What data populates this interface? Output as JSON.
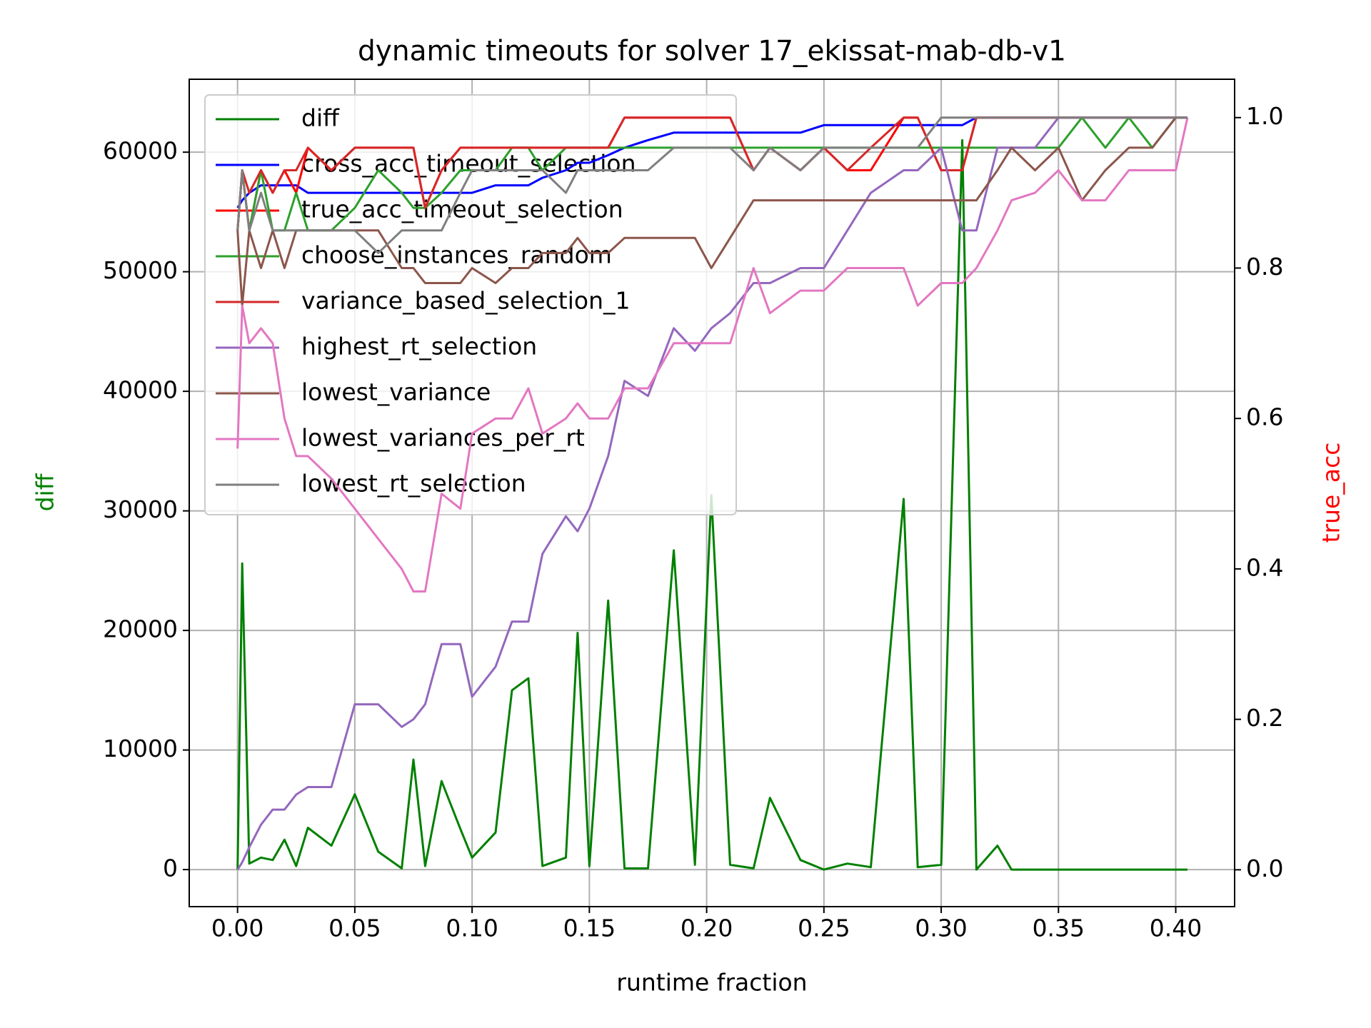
{
  "chart_data": {
    "type": "line",
    "title": "dynamic timeouts for solver 17_ekissat-mab-db-v1",
    "x_label": "runtime fraction",
    "y_label": "diff",
    "y2_label": "true_acc",
    "y_label_color": "#008000",
    "y2_label_color": "#ff0000",
    "x": [
      0,
      0.002,
      0.005,
      0.01,
      0.015,
      0.02,
      0.025,
      0.03,
      0.04,
      0.05,
      0.06,
      0.07,
      0.075,
      0.08,
      0.087,
      0.095,
      0.1,
      0.11,
      0.117,
      0.124,
      0.13,
      0.14,
      0.145,
      0.15,
      0.158,
      0.165,
      0.175,
      0.186,
      0.195,
      0.202,
      0.21,
      0.22,
      0.227,
      0.24,
      0.25,
      0.26,
      0.27,
      0.284,
      0.29,
      0.3,
      0.309,
      0.315,
      0.324,
      0.33,
      0.34,
      0.35,
      0.36,
      0.37,
      0.38,
      0.39,
      0.4,
      0.405
    ],
    "series": [
      {
        "name": "diff",
        "color": "#008000",
        "values": [
          0,
          25600,
          500,
          1000,
          800,
          2500,
          300,
          3500,
          2000,
          6300,
          1500,
          100,
          9200,
          300,
          7400,
          3400,
          1000,
          3100,
          15000,
          16000,
          300,
          1000,
          19800,
          300,
          22500,
          100,
          100,
          26700,
          400,
          31300,
          400,
          100,
          6000,
          800,
          0,
          500,
          200,
          31000,
          200,
          400,
          61000,
          0,
          2000,
          0,
          0,
          0,
          0,
          0,
          0,
          0,
          0,
          0
        ]
      },
      {
        "name": "cross_acc_timeout_selection",
        "color": "#0000ff",
        "axis": "y2",
        "values": [
          0.88,
          0.89,
          0.9,
          0.91,
          0.91,
          0.91,
          0.91,
          0.9,
          0.9,
          0.9,
          0.9,
          0.9,
          0.9,
          0.9,
          0.9,
          0.9,
          0.9,
          0.91,
          0.91,
          0.91,
          0.92,
          0.93,
          0.94,
          0.94,
          0.95,
          0.96,
          0.97,
          0.98,
          0.98,
          0.98,
          0.98,
          0.98,
          0.98,
          0.98,
          0.99,
          0.99,
          0.99,
          0.99,
          0.99,
          0.99,
          0.99,
          1.0,
          1.0,
          1.0,
          1.0,
          1.0,
          1.0,
          1.0,
          1.0,
          1.0,
          1.0,
          1.0
        ]
      },
      {
        "name": "true_acc_timeout_selection",
        "color": "#ff0000",
        "axis": "y2",
        "values": [
          0.85,
          0.93,
          0.85,
          0.93,
          0.9,
          0.93,
          0.9,
          0.96,
          0.93,
          0.96,
          0.96,
          0.96,
          0.96,
          0.88,
          0.93,
          0.96,
          0.96,
          0.96,
          0.96,
          0.96,
          0.96,
          0.96,
          0.96,
          0.96,
          0.96,
          1.0,
          1.0,
          1.0,
          1.0,
          1.0,
          1.0,
          0.93,
          0.96,
          0.93,
          0.96,
          0.93,
          0.93,
          1.0,
          1.0,
          0.93,
          0.93,
          1.0,
          1.0,
          1.0,
          1.0,
          1.0,
          1.0,
          1.0,
          1.0,
          1.0,
          1.0,
          1.0
        ]
      },
      {
        "name": "choose_instances_random",
        "color": "#2ca02c",
        "axis": "y2",
        "values": [
          0.85,
          0.93,
          0.85,
          0.93,
          0.85,
          0.85,
          0.9,
          0.85,
          0.85,
          0.88,
          0.93,
          0.9,
          0.88,
          0.88,
          0.9,
          0.93,
          0.93,
          0.93,
          0.96,
          0.96,
          0.93,
          0.96,
          0.96,
          0.96,
          0.96,
          0.96,
          0.96,
          0.96,
          0.96,
          0.96,
          0.96,
          0.96,
          0.96,
          0.96,
          0.96,
          0.96,
          0.96,
          0.96,
          0.96,
          0.96,
          0.96,
          0.96,
          0.96,
          0.96,
          0.96,
          0.96,
          1.0,
          0.96,
          1.0,
          0.96,
          1.0,
          1.0
        ]
      },
      {
        "name": "variance_based_selection_1",
        "color": "#d62728",
        "axis": "y2",
        "values": [
          0.85,
          0.93,
          0.9,
          0.93,
          0.9,
          0.93,
          0.93,
          0.96,
          0.93,
          0.96,
          0.96,
          0.96,
          0.96,
          0.88,
          0.93,
          0.96,
          0.96,
          0.96,
          0.96,
          0.96,
          0.96,
          0.96,
          0.96,
          0.96,
          0.96,
          1.0,
          1.0,
          1.0,
          1.0,
          1.0,
          1.0,
          0.93,
          0.96,
          0.93,
          0.96,
          0.93,
          0.96,
          1.0,
          1.0,
          0.93,
          0.93,
          1.0,
          1.0,
          1.0,
          1.0,
          1.0,
          1.0,
          1.0,
          1.0,
          1.0,
          1.0,
          1.0
        ]
      },
      {
        "name": "highest_rt_selection",
        "color": "#9467bd",
        "axis": "y2",
        "values": [
          0,
          0.01,
          0.03,
          0.06,
          0.08,
          0.08,
          0.1,
          0.11,
          0.11,
          0.22,
          0.22,
          0.19,
          0.2,
          0.22,
          0.3,
          0.3,
          0.23,
          0.27,
          0.33,
          0.33,
          0.42,
          0.47,
          0.45,
          0.48,
          0.55,
          0.65,
          0.63,
          0.72,
          0.69,
          0.72,
          0.74,
          0.78,
          0.78,
          0.8,
          0.8,
          0.85,
          0.9,
          0.93,
          0.93,
          0.96,
          0.85,
          0.85,
          0.96,
          0.96,
          0.96,
          1.0,
          1.0,
          1.0,
          1.0,
          1.0,
          1.0,
          1.0
        ]
      },
      {
        "name": "lowest_variance",
        "color": "#8c564b",
        "axis": "y2",
        "values": [
          0.85,
          0.75,
          0.85,
          0.8,
          0.85,
          0.8,
          0.85,
          0.85,
          0.85,
          0.85,
          0.85,
          0.8,
          0.8,
          0.78,
          0.78,
          0.78,
          0.8,
          0.78,
          0.8,
          0.8,
          0.82,
          0.82,
          0.84,
          0.82,
          0.82,
          0.84,
          0.84,
          0.84,
          0.84,
          0.8,
          0.84,
          0.89,
          0.89,
          0.89,
          0.89,
          0.89,
          0.89,
          0.89,
          0.89,
          0.89,
          0.89,
          0.89,
          0.93,
          0.96,
          0.93,
          0.96,
          0.89,
          0.93,
          0.96,
          0.96,
          1.0,
          1.0
        ]
      },
      {
        "name": "lowest_variances_per_rt",
        "color": "#e377c2",
        "axis": "y2",
        "values": [
          0.56,
          0.75,
          0.7,
          0.72,
          0.7,
          0.6,
          0.55,
          0.55,
          0.52,
          0.48,
          0.44,
          0.4,
          0.37,
          0.37,
          0.5,
          0.48,
          0.58,
          0.6,
          0.6,
          0.64,
          0.58,
          0.6,
          0.62,
          0.6,
          0.6,
          0.64,
          0.64,
          0.7,
          0.7,
          0.7,
          0.7,
          0.8,
          0.74,
          0.77,
          0.77,
          0.8,
          0.8,
          0.8,
          0.75,
          0.78,
          0.78,
          0.8,
          0.85,
          0.89,
          0.9,
          0.93,
          0.89,
          0.89,
          0.93,
          0.93,
          0.93,
          1.0
        ]
      },
      {
        "name": "lowest_rt_selection",
        "color": "#7f7f7f",
        "axis": "y2",
        "values": [
          0.85,
          0.93,
          0.85,
          0.9,
          0.85,
          0.85,
          0.85,
          0.85,
          0.85,
          0.85,
          0.82,
          0.85,
          0.85,
          0.85,
          0.85,
          0.9,
          0.93,
          0.93,
          0.93,
          0.93,
          0.93,
          0.9,
          0.93,
          0.93,
          0.93,
          0.93,
          0.93,
          0.96,
          0.96,
          0.96,
          0.96,
          0.93,
          0.96,
          0.93,
          0.96,
          0.96,
          0.96,
          0.96,
          0.96,
          1.0,
          1.0,
          1.0,
          1.0,
          1.0,
          1.0,
          1.0,
          1.0,
          1.0,
          1.0,
          1.0,
          1.0,
          1.0
        ]
      }
    ],
    "xlim": [
      -0.0206,
      0.4251
    ],
    "xticks": [
      {
        "value": 0,
        "label": "0.00"
      },
      {
        "value": 0.05,
        "label": "0.05"
      },
      {
        "value": 0.1,
        "label": "0.10"
      },
      {
        "value": 0.15,
        "label": "0.15"
      },
      {
        "value": 0.2,
        "label": "0.20"
      },
      {
        "value": 0.25,
        "label": "0.25"
      },
      {
        "value": 0.3,
        "label": "0.30"
      },
      {
        "value": 0.35,
        "label": "0.35"
      },
      {
        "value": 0.4,
        "label": "0.40"
      }
    ],
    "ylim": [
      -3100,
      66100
    ],
    "yticks": [
      0,
      10000,
      20000,
      30000,
      40000,
      50000,
      60000
    ],
    "y2lim": [
      -0.049,
      1.051
    ],
    "y2ticks": [
      {
        "value": 0,
        "label": "0.0"
      },
      {
        "value": 0.2,
        "label": "0.2"
      },
      {
        "value": 0.4,
        "label": "0.4"
      },
      {
        "value": 0.6,
        "label": "0.6"
      },
      {
        "value": 0.8,
        "label": "0.8"
      },
      {
        "value": 1,
        "label": "1.0"
      }
    ],
    "grid": true,
    "legend": "upper-left"
  }
}
